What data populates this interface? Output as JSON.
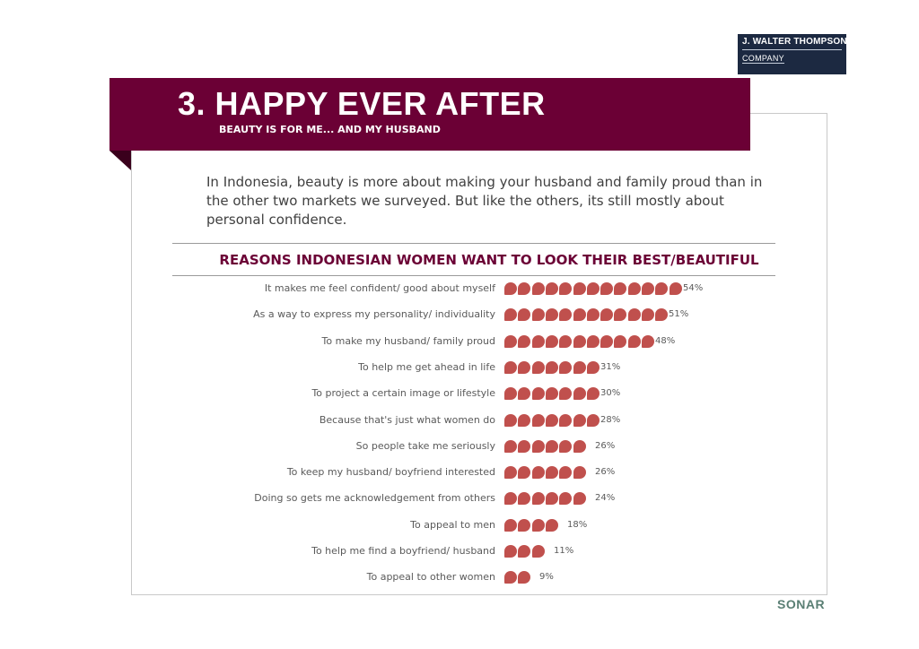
{
  "logo": {
    "line1": "J. WALTER THOMPSON",
    "line2": "COMPANY"
  },
  "header": {
    "title": "3. HAPPY EVER AFTER",
    "subtitle": "BEAUTY IS FOR ME... AND MY HUSBAND"
  },
  "intro": "In Indonesia, beauty is more about making your husband and family proud than in the other two markets we surveyed. But like the others, its still mostly about personal confidence.",
  "footer": {
    "brand": "SONAR"
  },
  "colors": {
    "banner": "#6b0035",
    "dots": "#c0504d",
    "logo_bg": "#1c2941"
  },
  "chart_data": {
    "type": "bar",
    "title": "REASONS INDONESIAN WOMEN WANT TO LOOK THEIR BEST/BEAUTIFUL",
    "xlabel": "",
    "ylabel": "",
    "unit": "%",
    "categories": [
      "It makes me feel confident/ good about myself",
      "As a way to express my personality/ individuality",
      "To make my husband/ family proud",
      "To help me get ahead in life",
      "To project a certain image or lifestyle",
      "Because that's just what women do",
      "So people take me seriously",
      "To keep my husband/ boyfriend interested",
      "Doing so gets me acknowledgement from others",
      "To appeal to men",
      "To help me find a boyfriend/ husband",
      "To appeal to other women"
    ],
    "values": [
      54,
      51,
      48,
      31,
      30,
      28,
      26,
      26,
      24,
      18,
      11,
      9
    ],
    "labels": [
      "54%",
      "51%",
      "48%",
      "31%",
      "30%",
      "28%",
      "26%",
      "26%",
      "24%",
      "18%",
      "11%",
      "9%"
    ]
  }
}
